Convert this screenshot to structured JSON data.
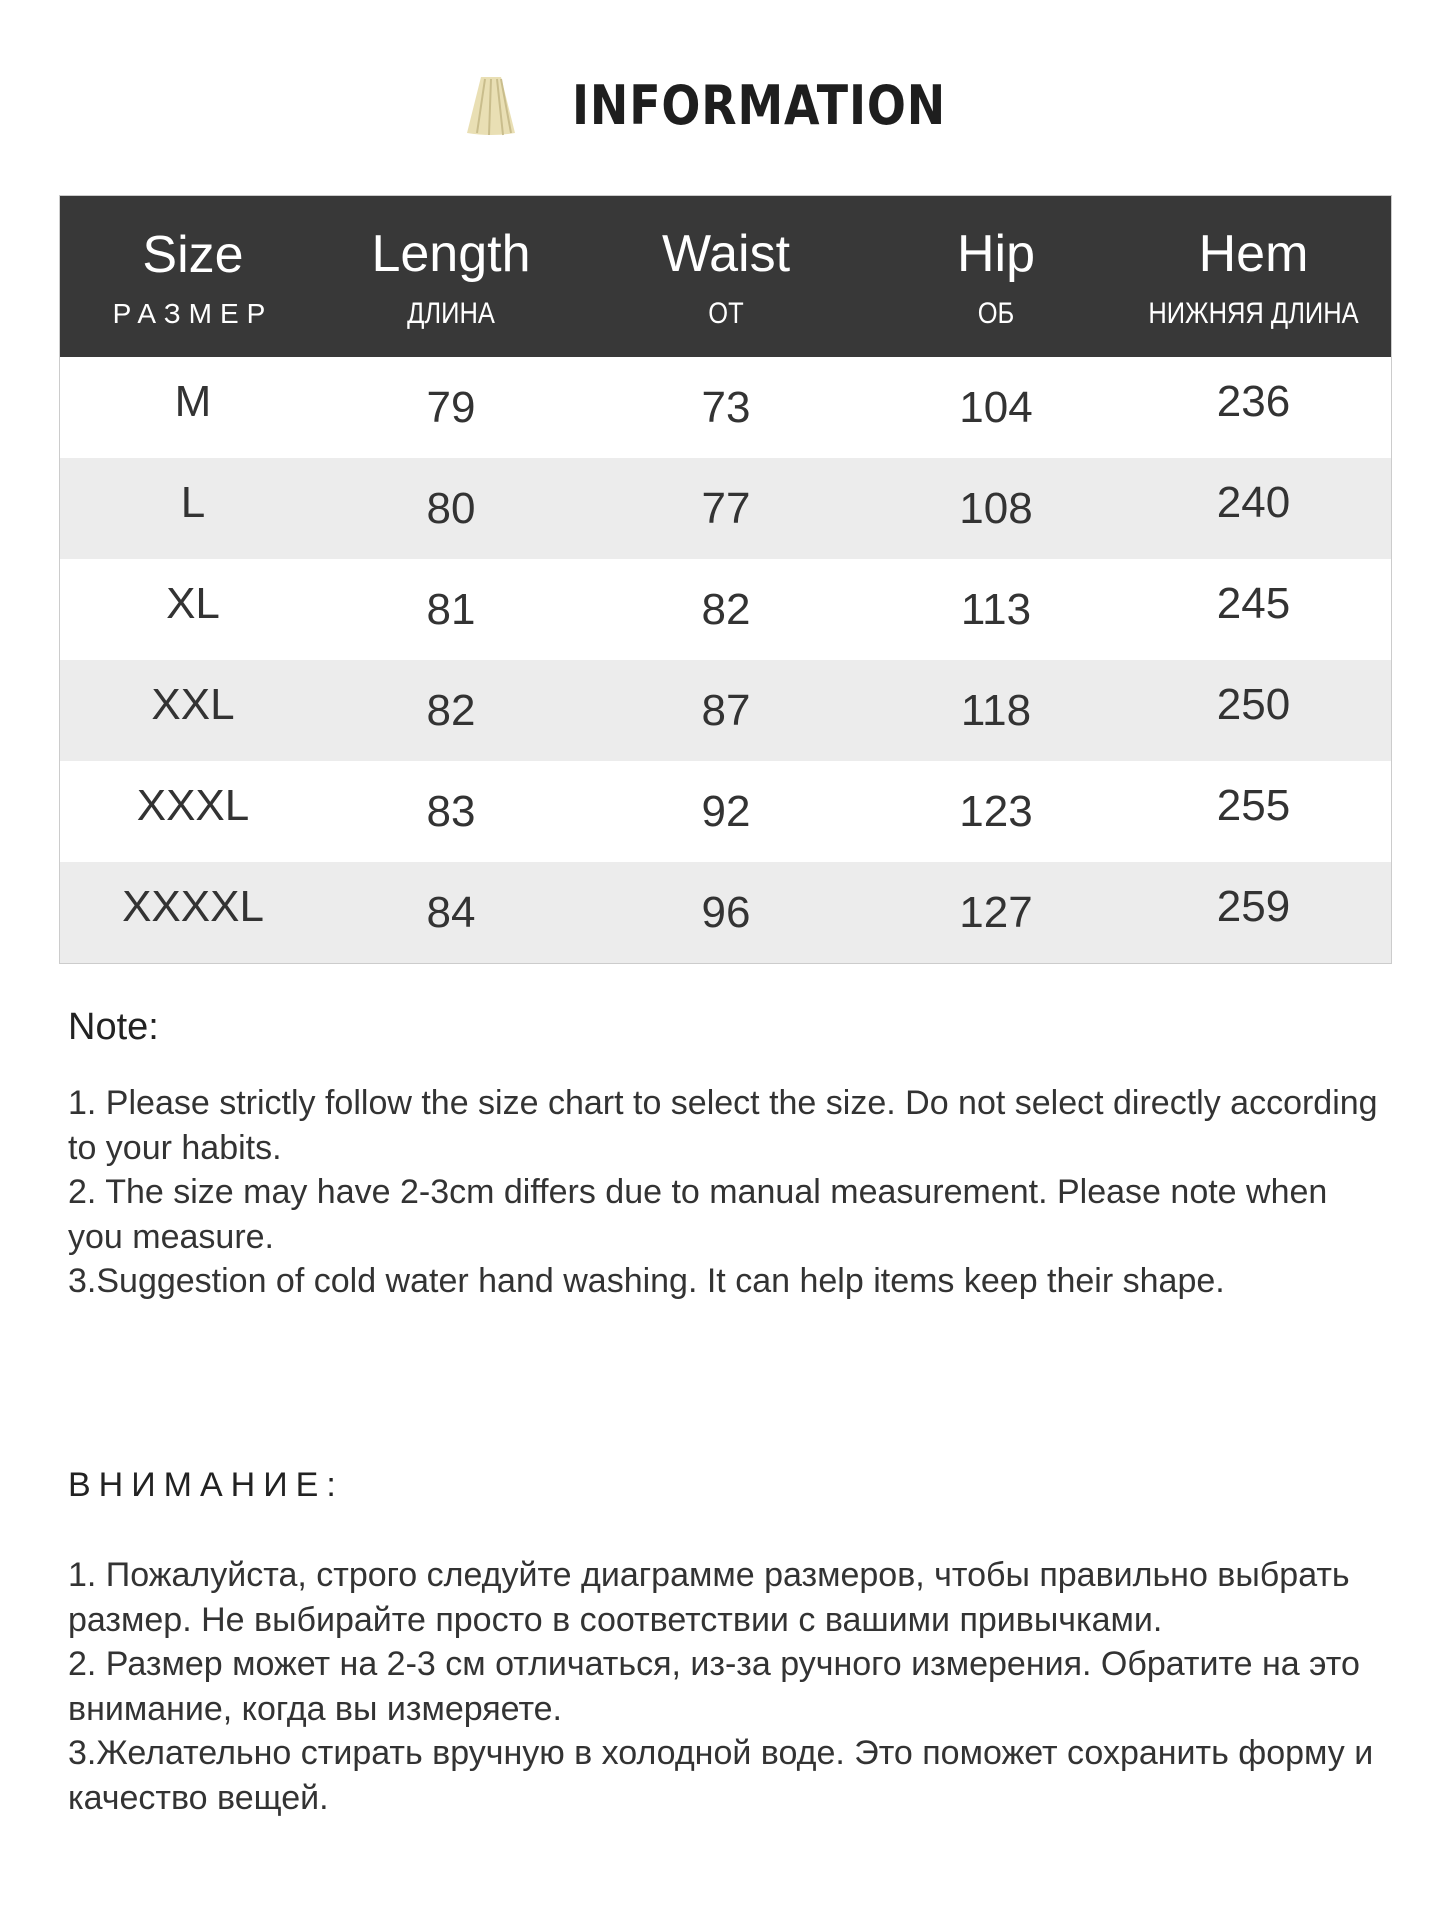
{
  "header": {
    "title": "INFORMATION",
    "icon": "skirt-icon"
  },
  "table": {
    "columns": [
      {
        "en": "Size",
        "ru": "РАЗМЕР"
      },
      {
        "en": "Length",
        "ru": "ДЛИНА"
      },
      {
        "en": "Waist",
        "ru": "ОТ"
      },
      {
        "en": "Hip",
        "ru": "ОБ"
      },
      {
        "en": "Hem",
        "ru": "НИЖНЯЯ ДЛИНА"
      }
    ],
    "rows": [
      [
        "M",
        "79",
        "73",
        "104",
        "236"
      ],
      [
        "L",
        "80",
        "77",
        "108",
        "240"
      ],
      [
        "XL",
        "81",
        "82",
        "113",
        "245"
      ],
      [
        "XXL",
        "82",
        "87",
        "118",
        "250"
      ],
      [
        "XXXL",
        "83",
        "92",
        "123",
        "255"
      ],
      [
        "XXXXL",
        "84",
        "96",
        "127",
        "259"
      ]
    ]
  },
  "note_en": {
    "title": "Note:",
    "lines": [
      "1. Please strictly follow the size chart  to select the size. Do not select directly according to your habits.",
      "2. The size may have 2-3cm differs due to manual measurement. Please note when you measure.",
      "3.Suggestion of cold water hand washing. It can help items keep their shape."
    ]
  },
  "note_ru": {
    "title": "ВНИМАНИЕ:",
    "lines": [
      "1. Пожалуйста, строго следуйте диаграмме размеров, чтобы правильно выбрать размер. Не выбирайте просто в соответствии с вашими привычками.",
      "2. Размер может на 2-3 см отличаться, из-за ручного измерения. Обратите на это внимание, когда вы измеряете.",
      "3.Желательно стирать вручную в холодной воде. Это поможет сохранить форму и качество вещей."
    ]
  }
}
